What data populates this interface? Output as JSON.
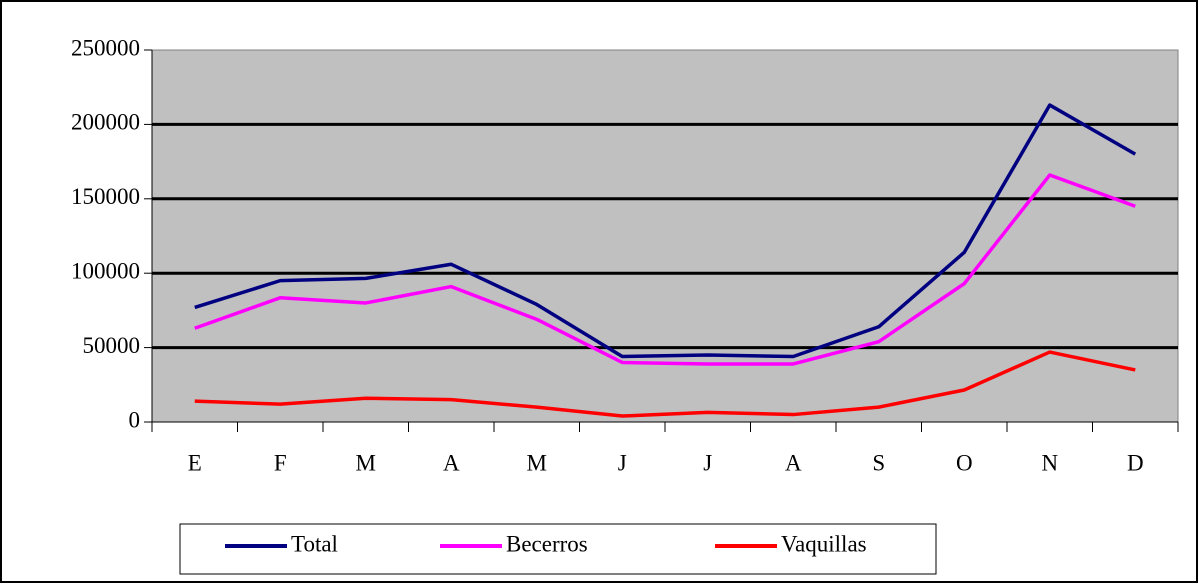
{
  "chart_data": {
    "type": "line",
    "categories": [
      "E",
      "F",
      "M",
      "A",
      "M",
      "J",
      "J",
      "A",
      "S",
      "O",
      "N",
      "D"
    ],
    "series": [
      {
        "name": "Total",
        "color": "#000080",
        "values": [
          77000,
          95000,
          96500,
          106000,
          79000,
          44000,
          45000,
          44000,
          64000,
          114000,
          213000,
          180000
        ]
      },
      {
        "name": "Becerros",
        "color": "#ff00ff",
        "values": [
          63000,
          83500,
          80000,
          91000,
          69000,
          40000,
          39000,
          39000,
          54000,
          93000,
          166000,
          145000
        ]
      },
      {
        "name": "Vaquillas",
        "color": "#ff0000",
        "values": [
          14000,
          12000,
          16000,
          15000,
          10000,
          4000,
          6500,
          5000,
          10000,
          21500,
          47000,
          35000
        ]
      }
    ],
    "ylim": [
      0,
      250000
    ],
    "yticks": [
      0,
      50000,
      100000,
      150000,
      200000,
      250000
    ],
    "grid": true,
    "legend": "bottom"
  }
}
